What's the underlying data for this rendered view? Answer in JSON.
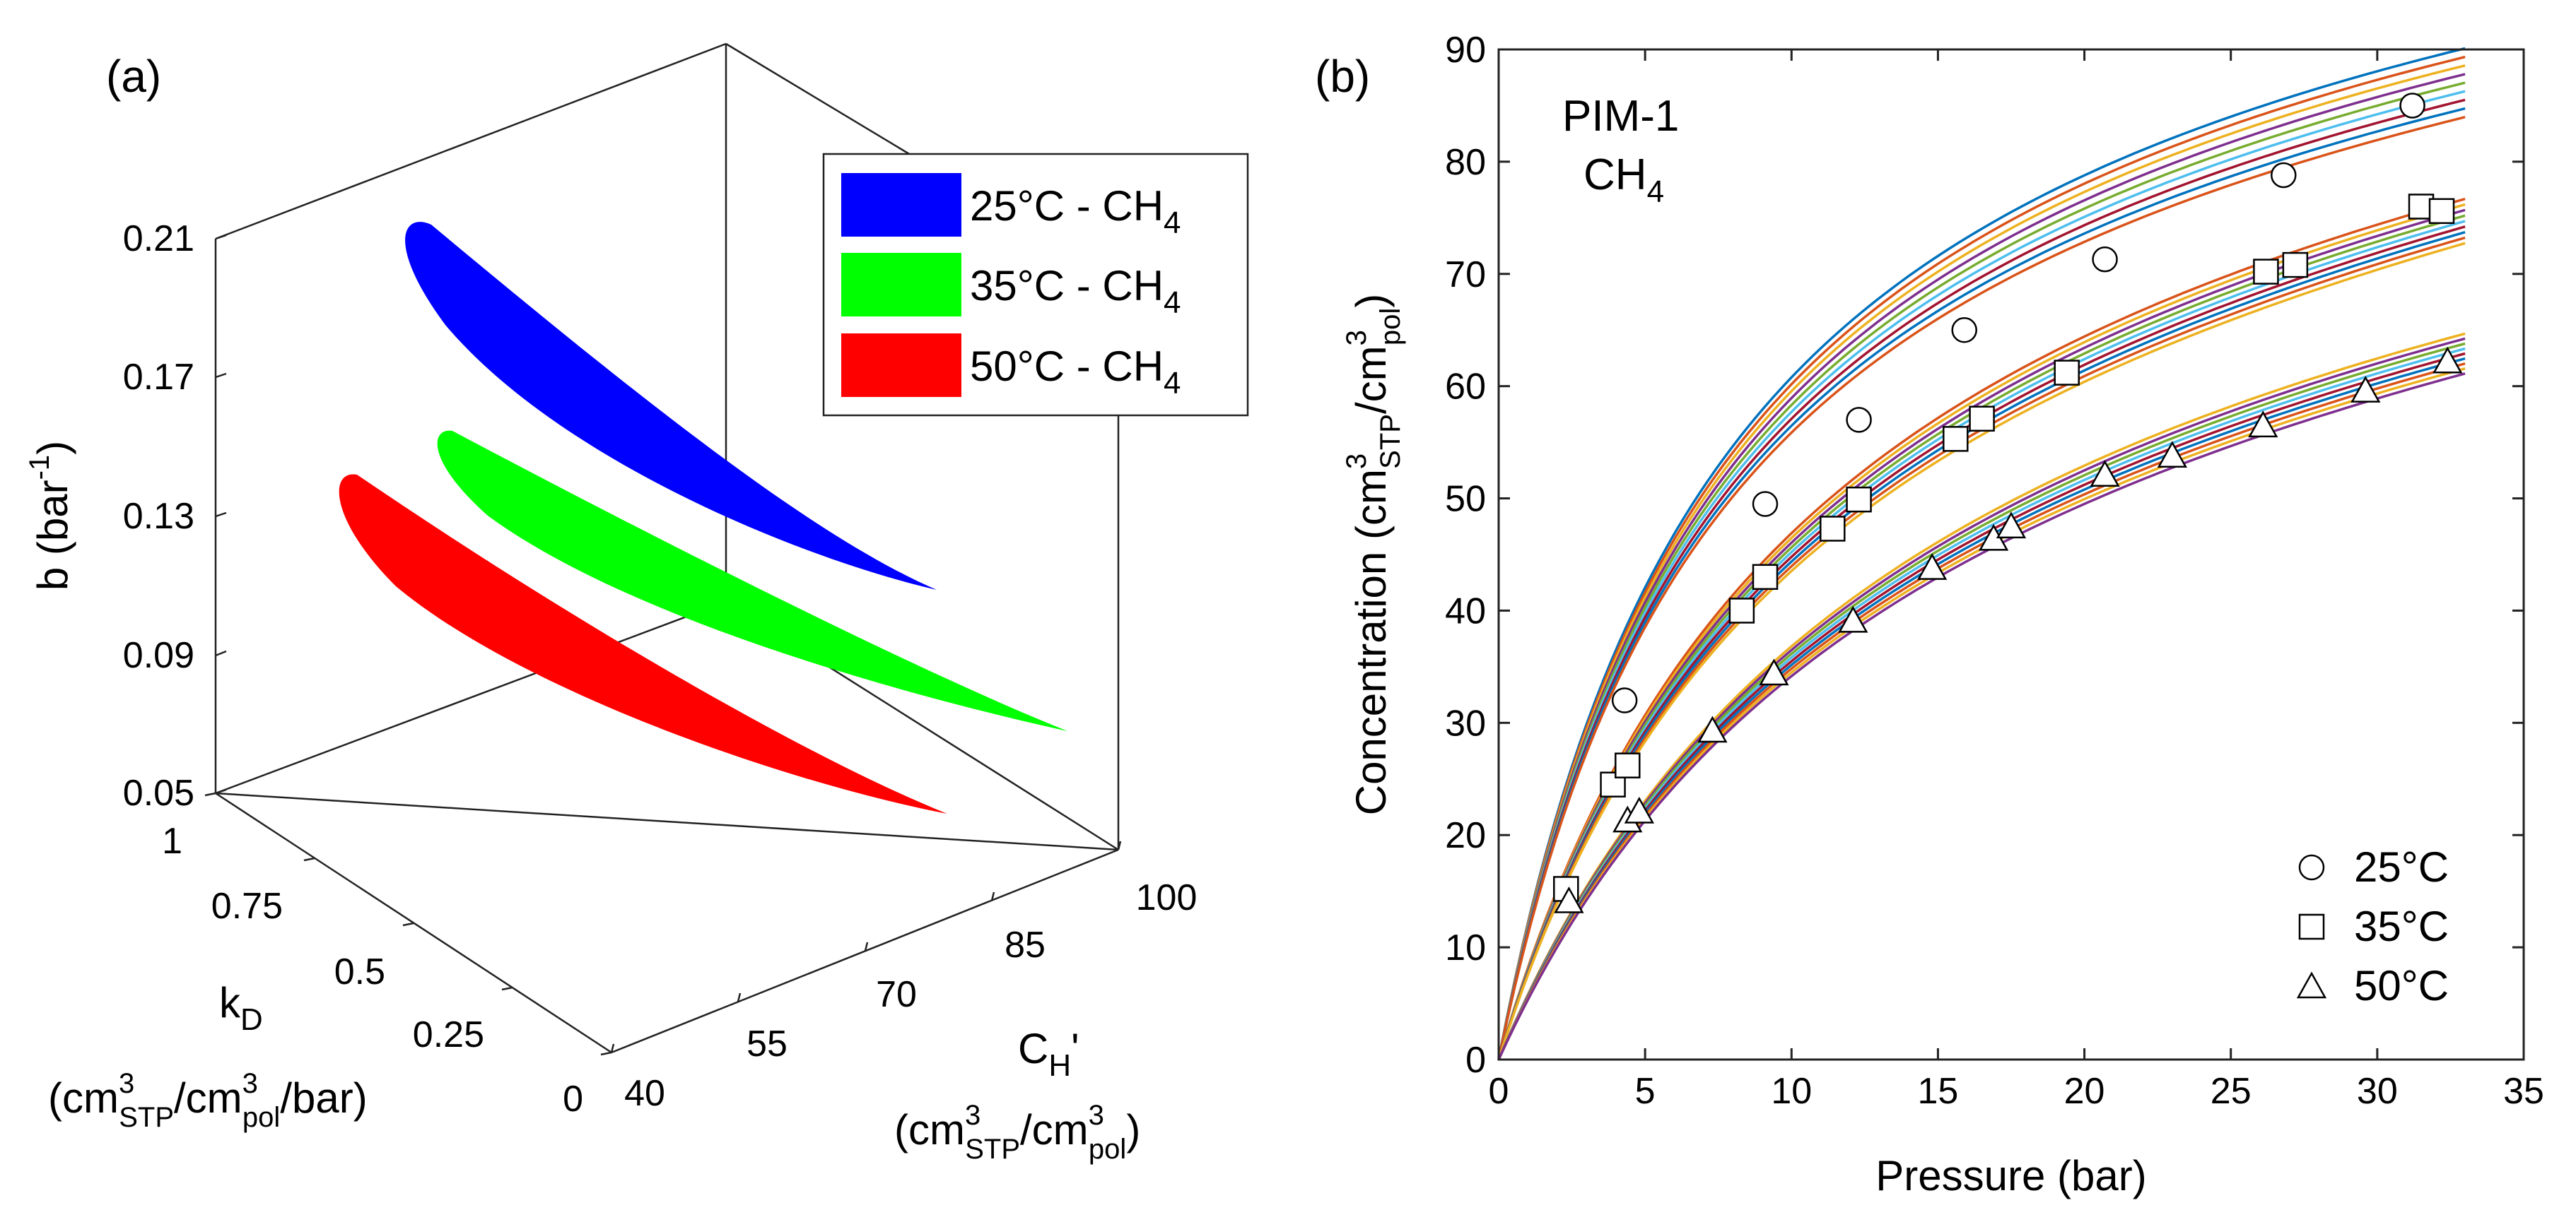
{
  "chart_data": [
    {
      "type": "scatter",
      "panel_label": "(a)",
      "projection": "3d",
      "title": "",
      "xlabel_lines": [
        "C",
        "H",
        "'",
        "(cm",
        "3",
        "STP",
        "/cm",
        "3",
        "pol",
        ")"
      ],
      "ylabel_lines": [
        "k",
        "D",
        "(cm",
        "3",
        "STP",
        "/cm",
        "3",
        "pol",
        "/bar)"
      ],
      "zlabel": "b (bar",
      "zlabel_sup": "-1",
      "zlabel_end": ")",
      "xlim": [
        40,
        100
      ],
      "ylim": [
        0,
        1
      ],
      "zlim": [
        0.05,
        0.21
      ],
      "x_ticks": [
        "40",
        "55",
        "70",
        "85",
        "100"
      ],
      "y_ticks": [
        "0",
        "0.25",
        "0.5",
        "0.75",
        "1"
      ],
      "z_ticks": [
        "0.05",
        "0.09",
        "0.13",
        "0.17",
        "0.21"
      ],
      "series": [
        {
          "name": "25°C - CH",
          "sub": "4",
          "color": "#0000ff",
          "points": [
            {
              "CH": 62,
              "kD": 0.2,
              "b": 0.205
            },
            {
              "CH": 78,
              "kD": 0.2,
              "b": 0.16
            },
            {
              "CH": 100,
              "kD": 0.2,
              "b": 0.105
            }
          ]
        },
        {
          "name": "35°C - CH",
          "sub": "4",
          "color": "#00ff00",
          "points": [
            {
              "CH": 60,
              "kD": 0.35,
              "b": 0.15
            },
            {
              "CH": 78,
              "kD": 0.35,
              "b": 0.12
            },
            {
              "CH": 100,
              "kD": 0.35,
              "b": 0.075
            }
          ]
        },
        {
          "name": "50°C - CH",
          "sub": "4",
          "color": "#ff0000",
          "points": [
            {
              "CH": 52,
              "kD": 0.45,
              "b": 0.14
            },
            {
              "CH": 68,
              "kD": 0.45,
              "b": 0.1
            },
            {
              "CH": 88,
              "kD": 0.45,
              "b": 0.055
            }
          ]
        }
      ]
    },
    {
      "type": "line",
      "panel_label": "(b)",
      "annotation": [
        "PIM-1",
        "CH",
        "4"
      ],
      "xlabel": "Pressure (bar)",
      "ylabel_parts": [
        "Concentration (cm",
        "3",
        "STP",
        "/cm",
        "3",
        "pol",
        ")"
      ],
      "xlim": [
        0,
        35
      ],
      "ylim": [
        0,
        90
      ],
      "x_ticks": [
        0,
        5,
        10,
        15,
        20,
        25,
        30,
        35
      ],
      "y_ticks": [
        0,
        10,
        20,
        30,
        40,
        50,
        60,
        70,
        80,
        90
      ],
      "series": [
        {
          "name": "25°C",
          "marker": "circle",
          "fit": {
            "kD": 0.18,
            "CH": 100,
            "b": 0.13
          },
          "x": [
            4.3,
            9.1,
            12.3,
            15.9,
            20.7,
            26.8,
            31.2
          ],
          "y": [
            32,
            49.5,
            57,
            65,
            71.3,
            78.8,
            85
          ]
        },
        {
          "name": "35°C",
          "marker": "square",
          "fit": {
            "kD": 0.26,
            "CH": 87,
            "b": 0.096
          },
          "x": [
            2.3,
            3.9,
            4.4,
            8.3,
            9.1,
            11.4,
            12.3,
            15.6,
            16.5,
            19.4,
            26.2,
            27.2,
            31.5,
            32.2
          ],
          "y": [
            15.2,
            24.5,
            26.2,
            40,
            43,
            47.3,
            49.9,
            55.3,
            57.1,
            61.2,
            70.2,
            70.8,
            76,
            75.6
          ]
        },
        {
          "name": "50°C",
          "marker": "triangle",
          "fit": {
            "kD": 0.2,
            "CH": 80,
            "b": 0.072
          },
          "x": [
            2.4,
            4.4,
            4.8,
            7.3,
            9.4,
            12.1,
            14.8,
            16.9,
            17.5,
            20.7,
            23,
            26.1,
            29.6,
            32.4
          ],
          "y": [
            14,
            21.2,
            22,
            29.2,
            34.3,
            39,
            43.7,
            46.3,
            47.4,
            52,
            53.7,
            56.4,
            59.5,
            62.1
          ]
        }
      ]
    }
  ]
}
